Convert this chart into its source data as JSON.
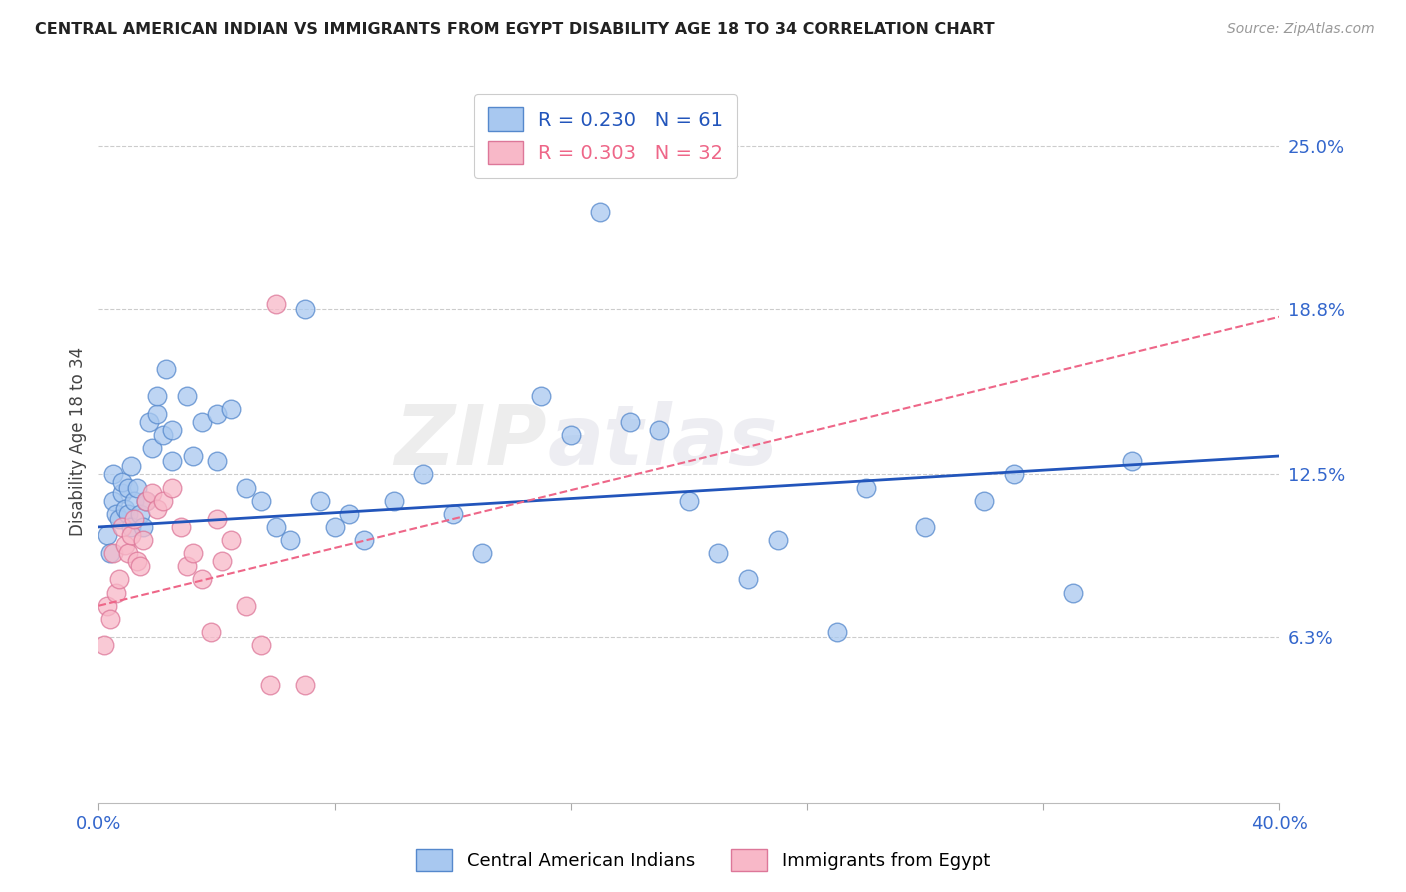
{
  "title": "CENTRAL AMERICAN INDIAN VS IMMIGRANTS FROM EGYPT DISABILITY AGE 18 TO 34 CORRELATION CHART",
  "source": "Source: ZipAtlas.com",
  "ylabel": "Disability Age 18 to 34",
  "ytick_values": [
    6.3,
    12.5,
    18.8,
    25.0
  ],
  "xlim": [
    0.0,
    40.0
  ],
  "ylim": [
    0.0,
    27.5
  ],
  "legend1_R": "0.230",
  "legend1_N": "61",
  "legend2_R": "0.303",
  "legend2_N": "32",
  "watermark_zip": "ZIP",
  "watermark_atlas": "atlas",
  "blue_color": "#A8C8F0",
  "blue_edge_color": "#5588CC",
  "blue_line_color": "#2255BB",
  "pink_color": "#F8B8C8",
  "pink_edge_color": "#DD7799",
  "pink_line_color": "#EE6688",
  "blue_scatter_x": [
    0.3,
    0.4,
    0.5,
    0.5,
    0.6,
    0.7,
    0.8,
    0.8,
    0.9,
    1.0,
    1.0,
    1.1,
    1.1,
    1.2,
    1.3,
    1.4,
    1.5,
    1.6,
    1.7,
    1.8,
    2.0,
    2.0,
    2.2,
    2.3,
    2.5,
    2.5,
    3.0,
    3.2,
    3.5,
    4.0,
    4.0,
    4.5,
    5.0,
    5.5,
    6.0,
    6.5,
    7.0,
    7.5,
    8.0,
    8.5,
    9.0,
    10.0,
    11.0,
    12.0,
    13.0,
    15.0,
    16.0,
    17.0,
    18.0,
    19.0,
    20.0,
    21.0,
    22.0,
    23.0,
    25.0,
    26.0,
    28.0,
    30.0,
    31.0,
    33.0,
    35.0
  ],
  "blue_scatter_y": [
    10.2,
    9.5,
    11.5,
    12.5,
    11.0,
    10.8,
    11.8,
    12.2,
    11.2,
    11.0,
    12.0,
    10.5,
    12.8,
    11.5,
    12.0,
    11.0,
    10.5,
    11.5,
    14.5,
    13.5,
    14.8,
    15.5,
    14.0,
    16.5,
    13.0,
    14.2,
    15.5,
    13.2,
    14.5,
    14.8,
    13.0,
    15.0,
    12.0,
    11.5,
    10.5,
    10.0,
    18.8,
    11.5,
    10.5,
    11.0,
    10.0,
    11.5,
    12.5,
    11.0,
    9.5,
    15.5,
    14.0,
    22.5,
    14.5,
    14.2,
    11.5,
    9.5,
    8.5,
    10.0,
    6.5,
    12.0,
    10.5,
    11.5,
    12.5,
    8.0,
    13.0
  ],
  "pink_scatter_x": [
    0.2,
    0.3,
    0.4,
    0.5,
    0.6,
    0.7,
    0.8,
    0.9,
    1.0,
    1.1,
    1.2,
    1.3,
    1.4,
    1.5,
    1.6,
    1.8,
    2.0,
    2.2,
    2.5,
    2.8,
    3.0,
    3.2,
    3.5,
    3.8,
    4.0,
    4.2,
    4.5,
    5.0,
    5.5,
    5.8,
    6.0,
    7.0
  ],
  "pink_scatter_y": [
    6.0,
    7.5,
    7.0,
    9.5,
    8.0,
    8.5,
    10.5,
    9.8,
    9.5,
    10.2,
    10.8,
    9.2,
    9.0,
    10.0,
    11.5,
    11.8,
    11.2,
    11.5,
    12.0,
    10.5,
    9.0,
    9.5,
    8.5,
    6.5,
    10.8,
    9.2,
    10.0,
    7.5,
    6.0,
    4.5,
    19.0,
    4.5
  ],
  "blue_trendline_x": [
    0.0,
    40.0
  ],
  "blue_trendline_y": [
    10.5,
    13.2
  ],
  "pink_trendline_x": [
    0.0,
    40.0
  ],
  "pink_trendline_y": [
    7.5,
    18.5
  ],
  "background_color": "#FFFFFF",
  "grid_color": "#CCCCCC"
}
